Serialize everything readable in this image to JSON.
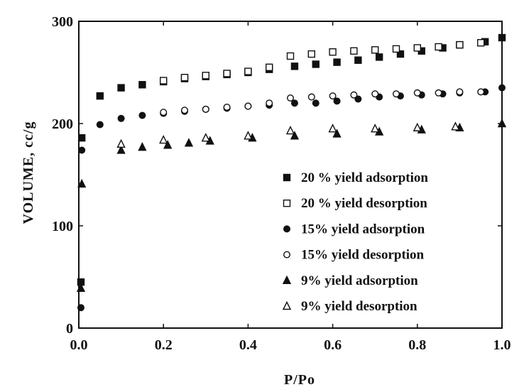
{
  "chart_data": {
    "type": "scatter",
    "title": "",
    "xlabel": "P/Po",
    "ylabel": "VOLUME,  cc/g",
    "xlim": [
      0,
      1.0
    ],
    "ylim": [
      0,
      300
    ],
    "x_ticks": [
      0.0,
      0.2,
      0.4,
      0.6,
      0.8,
      1.0
    ],
    "x_tick_labels": [
      "0.0",
      "0.2",
      "0.4",
      "0.6",
      "0.8",
      "1.0"
    ],
    "y_ticks": [
      0,
      100,
      200,
      300
    ],
    "y_tick_labels": [
      "0",
      "100",
      "200",
      "300"
    ],
    "grid": false,
    "legend_position": "lower-right",
    "series": [
      {
        "name": "20 % yield adsorption",
        "marker": "square-filled",
        "points": [
          [
            0.005,
            45
          ],
          [
            0.007,
            186
          ],
          [
            0.05,
            227
          ],
          [
            0.1,
            235
          ],
          [
            0.15,
            238
          ],
          [
            0.2,
            241
          ],
          [
            0.25,
            244
          ],
          [
            0.3,
            246
          ],
          [
            0.35,
            248
          ],
          [
            0.4,
            250
          ],
          [
            0.45,
            253
          ],
          [
            0.51,
            256
          ],
          [
            0.56,
            258
          ],
          [
            0.61,
            260
          ],
          [
            0.66,
            262
          ],
          [
            0.71,
            265
          ],
          [
            0.76,
            268
          ],
          [
            0.81,
            271
          ],
          [
            0.86,
            274
          ],
          [
            0.9,
            277
          ],
          [
            0.96,
            280
          ],
          [
            1.0,
            284
          ]
        ]
      },
      {
        "name": "20 % yield desorption",
        "marker": "square-open",
        "points": [
          [
            0.2,
            242
          ],
          [
            0.25,
            245
          ],
          [
            0.3,
            247
          ],
          [
            0.35,
            249
          ],
          [
            0.4,
            251
          ],
          [
            0.45,
            255
          ],
          [
            0.5,
            266
          ],
          [
            0.55,
            268
          ],
          [
            0.6,
            270
          ],
          [
            0.65,
            271
          ],
          [
            0.7,
            272
          ],
          [
            0.75,
            273
          ],
          [
            0.8,
            274
          ],
          [
            0.85,
            275
          ],
          [
            0.9,
            277
          ],
          [
            0.95,
            279
          ]
        ]
      },
      {
        "name": "15% yield adsorption",
        "marker": "circle-filled",
        "points": [
          [
            0.005,
            20
          ],
          [
            0.007,
            174
          ],
          [
            0.05,
            199
          ],
          [
            0.1,
            205
          ],
          [
            0.15,
            208
          ],
          [
            0.2,
            210
          ],
          [
            0.25,
            212
          ],
          [
            0.3,
            214
          ],
          [
            0.35,
            215
          ],
          [
            0.4,
            217
          ],
          [
            0.45,
            218
          ],
          [
            0.51,
            220
          ],
          [
            0.56,
            220
          ],
          [
            0.61,
            222
          ],
          [
            0.66,
            224
          ],
          [
            0.71,
            226
          ],
          [
            0.76,
            227
          ],
          [
            0.81,
            228
          ],
          [
            0.86,
            229
          ],
          [
            0.9,
            230
          ],
          [
            0.96,
            231
          ],
          [
            1.0,
            235
          ]
        ]
      },
      {
        "name": "15% yield desorption",
        "marker": "circle-open",
        "points": [
          [
            0.2,
            211
          ],
          [
            0.25,
            213
          ],
          [
            0.3,
            214
          ],
          [
            0.35,
            216
          ],
          [
            0.4,
            217
          ],
          [
            0.45,
            220
          ],
          [
            0.5,
            225
          ],
          [
            0.55,
            226
          ],
          [
            0.6,
            227
          ],
          [
            0.65,
            228
          ],
          [
            0.7,
            229
          ],
          [
            0.75,
            229
          ],
          [
            0.8,
            230
          ],
          [
            0.85,
            230
          ],
          [
            0.9,
            231
          ],
          [
            0.95,
            231
          ]
        ]
      },
      {
        "name": "9% yield adsorption",
        "marker": "triangle-filled",
        "points": [
          [
            0.005,
            39
          ],
          [
            0.007,
            141
          ],
          [
            0.1,
            174
          ],
          [
            0.15,
            177
          ],
          [
            0.21,
            179
          ],
          [
            0.26,
            181
          ],
          [
            0.31,
            183
          ],
          [
            0.41,
            186
          ],
          [
            0.51,
            188
          ],
          [
            0.61,
            190
          ],
          [
            0.71,
            192
          ],
          [
            0.81,
            194
          ],
          [
            0.9,
            196
          ],
          [
            1.0,
            200
          ]
        ]
      },
      {
        "name": "9% yield desorption",
        "marker": "triangle-open",
        "points": [
          [
            0.1,
            180
          ],
          [
            0.2,
            184
          ],
          [
            0.3,
            186
          ],
          [
            0.4,
            188
          ],
          [
            0.5,
            193
          ],
          [
            0.6,
            195
          ],
          [
            0.7,
            195
          ],
          [
            0.8,
            196
          ],
          [
            0.89,
            197
          ]
        ]
      }
    ]
  }
}
